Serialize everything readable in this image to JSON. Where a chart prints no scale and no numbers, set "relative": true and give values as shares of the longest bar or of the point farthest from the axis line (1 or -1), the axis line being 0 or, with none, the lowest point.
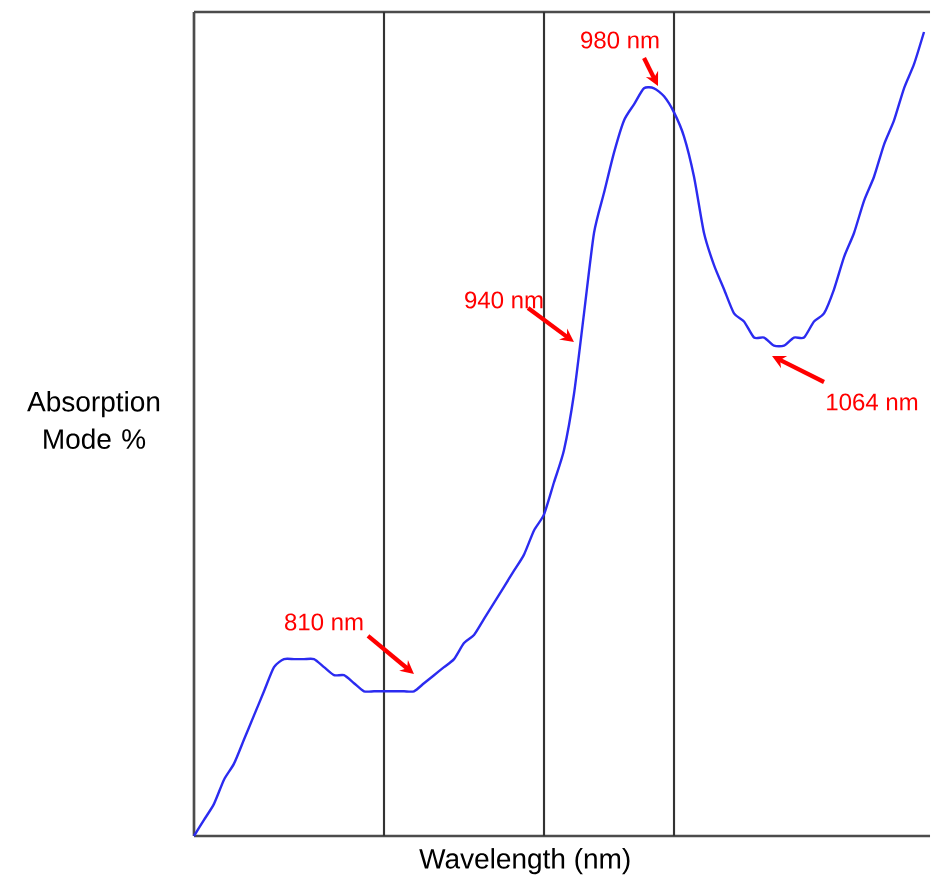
{
  "chart_data": {
    "type": "line",
    "relative": true,
    "xlabel": "Wavelength (nm)",
    "ylabel": "Absorption Mode %",
    "categories": [
      null,
      null,
      null,
      null,
      null,
      null,
      null,
      null,
      null,
      null,
      null,
      null,
      null,
      null,
      null,
      null,
      null,
      null,
      null,
      null,
      null,
      null,
      null,
      null,
      null,
      null,
      null,
      null,
      null,
      null,
      null,
      null,
      null,
      null,
      null,
      null,
      null,
      null,
      null,
      null,
      null,
      null,
      null,
      null,
      null,
      null,
      null,
      null,
      null,
      null,
      null,
      null,
      null,
      null,
      null,
      null,
      null,
      null,
      null,
      null,
      null,
      null,
      null,
      null,
      null,
      null,
      null,
      null,
      null,
      null,
      null,
      null,
      null,
      null
    ],
    "series": [
      {
        "color": "#2b2bf0",
        "values": [
          0,
          0.02,
          0.04,
          0.07,
          0.09,
          0.12,
          0.15,
          0.18,
          0.21,
          0.22,
          0.22,
          0.22,
          0.22,
          0.21,
          0.2,
          0.2,
          0.19,
          0.18,
          0.18,
          0.18,
          0.18,
          0.18,
          0.18,
          0.19,
          0.2,
          0.21,
          0.22,
          0.24,
          0.25,
          0.27,
          0.29,
          0.31,
          0.33,
          0.35,
          0.38,
          0.4,
          0.44,
          0.48,
          0.55,
          0.65,
          0.75,
          0.8,
          0.85,
          0.89,
          0.91,
          0.93,
          0.93,
          0.92,
          0.9,
          0.87,
          0.82,
          0.75,
          0.71,
          0.68,
          0.65,
          0.64,
          0.62,
          0.62,
          0.61,
          0.61,
          0.62,
          0.62,
          0.64,
          0.65,
          0.68,
          0.72,
          0.75,
          0.79,
          0.82,
          0.86,
          0.89,
          0.93,
          0.96,
          1
        ]
      }
    ],
    "annotations": [
      "980 nm",
      "940 nm",
      "810 nm",
      "1064 nm"
    ],
    "grid": "x",
    "marker": "none",
    "line_style": "solid"
  }
}
